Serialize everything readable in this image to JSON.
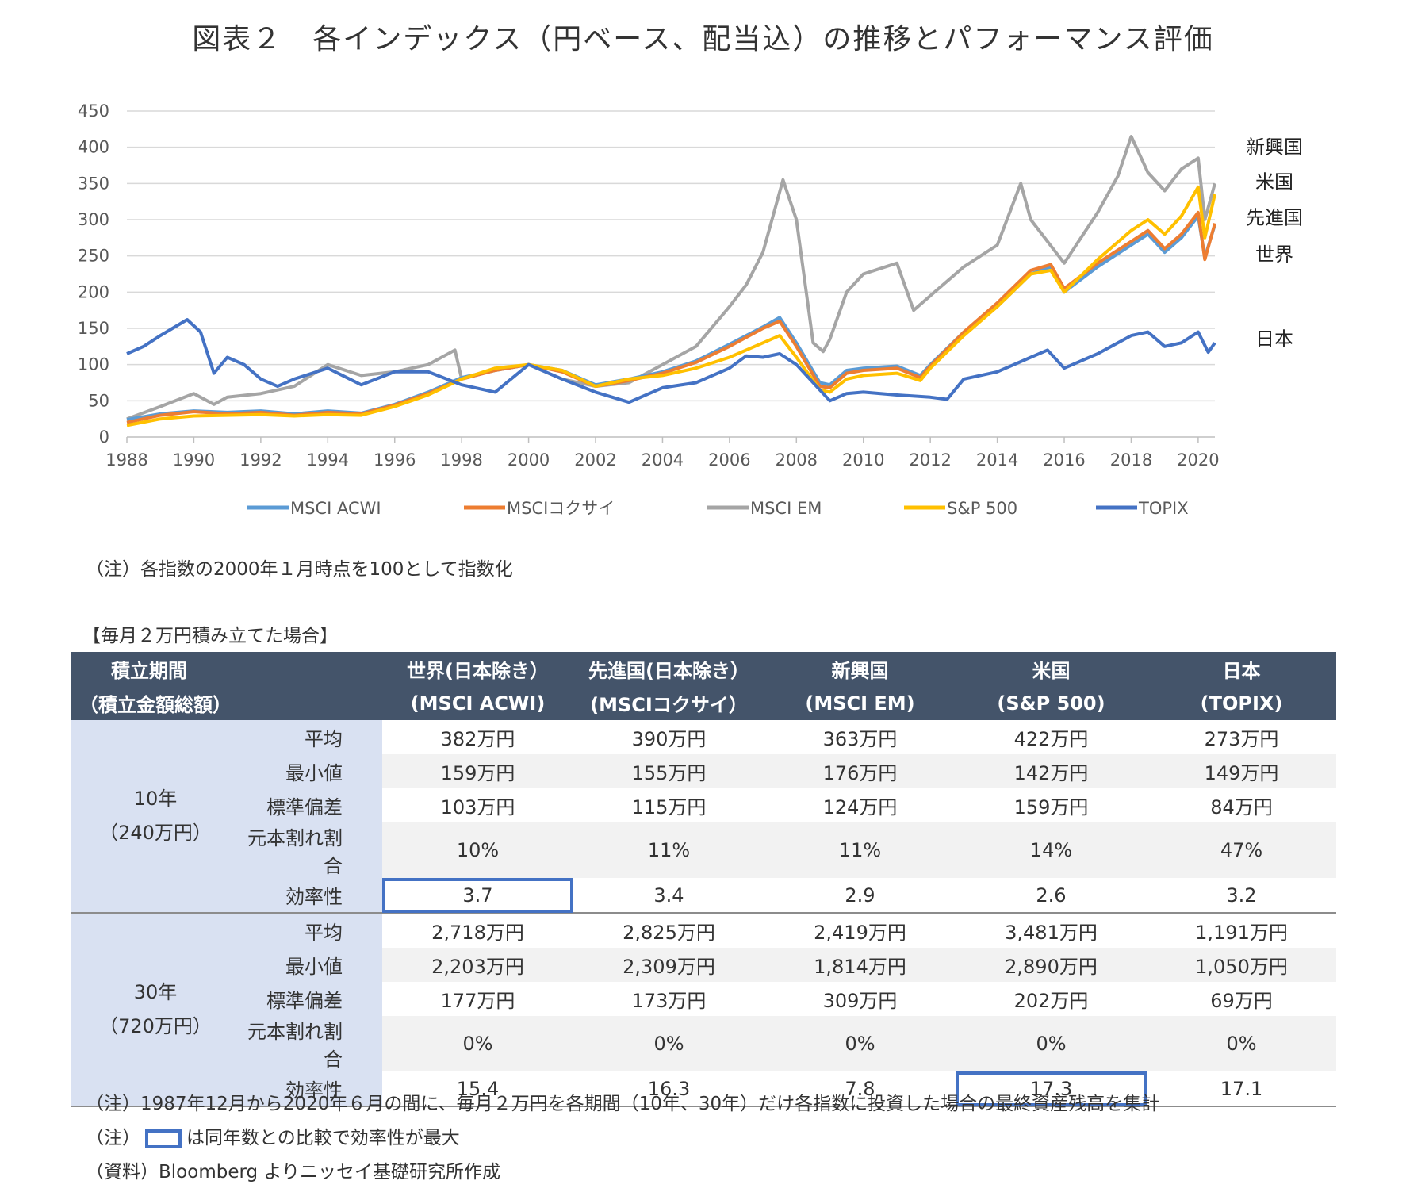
{
  "title": "図表２　各インデックス（円ベース、配当込）の推移とパフォーマンス評価",
  "chart_data": {
    "type": "line",
    "xlim": [
      1988,
      2020.5
    ],
    "ylim": [
      0,
      450
    ],
    "y_ticks": [
      "0",
      "50",
      "100",
      "150",
      "200",
      "250",
      "300",
      "350",
      "400",
      "450"
    ],
    "x_ticks": [
      "1988",
      "1990",
      "1992",
      "1994",
      "1996",
      "1998",
      "2000",
      "2002",
      "2004",
      "2006",
      "2008",
      "2010",
      "2012",
      "2014",
      "2016",
      "2018",
      "2020"
    ],
    "grid": true,
    "legend_position": "bottom",
    "region_labels": [
      {
        "text": "新興国",
        "y": 400
      },
      {
        "text": "米国",
        "y": 352
      },
      {
        "text": "先進国",
        "y": 303
      },
      {
        "text": "世界",
        "y": 252
      },
      {
        "text": "日本",
        "y": 135
      }
    ],
    "series": [
      {
        "name": "MSCI ACWI",
        "color": "#5b9bd5",
        "width": 4,
        "points": [
          [
            1988,
            24
          ],
          [
            1989,
            32
          ],
          [
            1990,
            36
          ],
          [
            1991,
            34
          ],
          [
            1992,
            36
          ],
          [
            1993,
            32
          ],
          [
            1994,
            36
          ],
          [
            1995,
            33
          ],
          [
            1996,
            45
          ],
          [
            1997,
            62
          ],
          [
            1998,
            82
          ],
          [
            1999,
            92
          ],
          [
            2000,
            100
          ],
          [
            2001,
            92
          ],
          [
            2002,
            72
          ],
          [
            2003,
            80
          ],
          [
            2004,
            90
          ],
          [
            2005,
            105
          ],
          [
            2006,
            128
          ],
          [
            2007,
            152
          ],
          [
            2007.5,
            165
          ],
          [
            2008,
            130
          ],
          [
            2008.7,
            75
          ],
          [
            2009,
            72
          ],
          [
            2009.5,
            92
          ],
          [
            2010,
            95
          ],
          [
            2011,
            98
          ],
          [
            2011.7,
            85
          ],
          [
            2012,
            100
          ],
          [
            2013,
            145
          ],
          [
            2014,
            180
          ],
          [
            2015,
            225
          ],
          [
            2015.6,
            235
          ],
          [
            2016,
            200
          ],
          [
            2017,
            235
          ],
          [
            2018,
            265
          ],
          [
            2018.5,
            280
          ],
          [
            2019,
            255
          ],
          [
            2019.5,
            275
          ],
          [
            2020,
            305
          ],
          [
            2020.2,
            248
          ],
          [
            2020.5,
            293
          ]
        ]
      },
      {
        "name": "MSCIコクサイ",
        "color": "#ed7d31",
        "width": 4,
        "points": [
          [
            1988,
            20
          ],
          [
            1989,
            30
          ],
          [
            1990,
            35
          ],
          [
            1991,
            32
          ],
          [
            1992,
            34
          ],
          [
            1993,
            30
          ],
          [
            1994,
            34
          ],
          [
            1995,
            32
          ],
          [
            1996,
            44
          ],
          [
            1997,
            60
          ],
          [
            1998,
            80
          ],
          [
            1999,
            92
          ],
          [
            2000,
            100
          ],
          [
            2001,
            90
          ],
          [
            2002,
            70
          ],
          [
            2003,
            78
          ],
          [
            2004,
            88
          ],
          [
            2005,
            103
          ],
          [
            2006,
            125
          ],
          [
            2007,
            150
          ],
          [
            2007.5,
            160
          ],
          [
            2008,
            125
          ],
          [
            2008.7,
            70
          ],
          [
            2009,
            68
          ],
          [
            2009.5,
            88
          ],
          [
            2010,
            92
          ],
          [
            2011,
            95
          ],
          [
            2011.7,
            82
          ],
          [
            2012,
            98
          ],
          [
            2013,
            145
          ],
          [
            2014,
            185
          ],
          [
            2015,
            230
          ],
          [
            2015.6,
            238
          ],
          [
            2016,
            205
          ],
          [
            2017,
            240
          ],
          [
            2018,
            270
          ],
          [
            2018.5,
            285
          ],
          [
            2019,
            260
          ],
          [
            2019.5,
            280
          ],
          [
            2020,
            310
          ],
          [
            2020.2,
            245
          ],
          [
            2020.5,
            295
          ]
        ]
      },
      {
        "name": "MSCI EM",
        "color": "#a5a5a5",
        "width": 4,
        "points": [
          [
            1988,
            25
          ],
          [
            1989,
            42
          ],
          [
            1990,
            60
          ],
          [
            1990.6,
            45
          ],
          [
            1991,
            55
          ],
          [
            1992,
            60
          ],
          [
            1993,
            70
          ],
          [
            1994,
            100
          ],
          [
            1995,
            85
          ],
          [
            1996,
            90
          ],
          [
            1997,
            100
          ],
          [
            1997.8,
            120
          ],
          [
            1998,
            80
          ],
          [
            1999,
            92
          ],
          [
            2000,
            100
          ],
          [
            2001,
            80
          ],
          [
            2002,
            70
          ],
          [
            2003,
            75
          ],
          [
            2004,
            100
          ],
          [
            2005,
            125
          ],
          [
            2006,
            180
          ],
          [
            2006.5,
            210
          ],
          [
            2007,
            255
          ],
          [
            2007.6,
            355
          ],
          [
            2008,
            300
          ],
          [
            2008.5,
            130
          ],
          [
            2008.8,
            118
          ],
          [
            2009,
            135
          ],
          [
            2009.5,
            200
          ],
          [
            2010,
            225
          ],
          [
            2011,
            240
          ],
          [
            2011.5,
            175
          ],
          [
            2012,
            195
          ],
          [
            2013,
            235
          ],
          [
            2014,
            265
          ],
          [
            2014.7,
            350
          ],
          [
            2015,
            300
          ],
          [
            2016,
            240
          ],
          [
            2017,
            310
          ],
          [
            2017.6,
            360
          ],
          [
            2018,
            415
          ],
          [
            2018.5,
            365
          ],
          [
            2019,
            340
          ],
          [
            2019.5,
            370
          ],
          [
            2020,
            385
          ],
          [
            2020.2,
            300
          ],
          [
            2020.5,
            350
          ]
        ]
      },
      {
        "name": "S&P 500",
        "color": "#ffc000",
        "width": 4,
        "points": [
          [
            1988,
            16
          ],
          [
            1989,
            25
          ],
          [
            1990,
            29
          ],
          [
            1991,
            30
          ],
          [
            1992,
            31
          ],
          [
            1993,
            29
          ],
          [
            1994,
            31
          ],
          [
            1995,
            30
          ],
          [
            1996,
            42
          ],
          [
            1997,
            58
          ],
          [
            1998,
            80
          ],
          [
            1999,
            95
          ],
          [
            2000,
            100
          ],
          [
            2001,
            92
          ],
          [
            2002,
            70
          ],
          [
            2003,
            80
          ],
          [
            2004,
            85
          ],
          [
            2005,
            95
          ],
          [
            2006,
            110
          ],
          [
            2007,
            130
          ],
          [
            2007.5,
            140
          ],
          [
            2008,
            110
          ],
          [
            2008.7,
            65
          ],
          [
            2009,
            62
          ],
          [
            2009.5,
            80
          ],
          [
            2010,
            85
          ],
          [
            2011,
            88
          ],
          [
            2011.7,
            78
          ],
          [
            2012,
            95
          ],
          [
            2013,
            140
          ],
          [
            2014,
            180
          ],
          [
            2015,
            225
          ],
          [
            2015.6,
            230
          ],
          [
            2016,
            200
          ],
          [
            2017,
            245
          ],
          [
            2018,
            285
          ],
          [
            2018.5,
            300
          ],
          [
            2019,
            280
          ],
          [
            2019.5,
            305
          ],
          [
            2020,
            345
          ],
          [
            2020.2,
            275
          ],
          [
            2020.5,
            335
          ]
        ]
      },
      {
        "name": "TOPIX",
        "color": "#4472c4",
        "width": 4,
        "points": [
          [
            1988,
            115
          ],
          [
            1988.5,
            125
          ],
          [
            1989,
            140
          ],
          [
            1989.8,
            162
          ],
          [
            1990.2,
            145
          ],
          [
            1990.6,
            88
          ],
          [
            1991,
            110
          ],
          [
            1991.5,
            100
          ],
          [
            1992,
            80
          ],
          [
            1992.5,
            70
          ],
          [
            1993,
            80
          ],
          [
            1994,
            95
          ],
          [
            1995,
            72
          ],
          [
            1996,
            90
          ],
          [
            1997,
            90
          ],
          [
            1998,
            72
          ],
          [
            1999,
            62
          ],
          [
            2000,
            100
          ],
          [
            2000.5,
            90
          ],
          [
            2001,
            80
          ],
          [
            2002,
            62
          ],
          [
            2003,
            48
          ],
          [
            2004,
            68
          ],
          [
            2005,
            75
          ],
          [
            2006,
            95
          ],
          [
            2006.5,
            112
          ],
          [
            2007,
            110
          ],
          [
            2007.5,
            115
          ],
          [
            2008,
            100
          ],
          [
            2008.5,
            75
          ],
          [
            2009,
            50
          ],
          [
            2009.5,
            60
          ],
          [
            2010,
            62
          ],
          [
            2011,
            58
          ],
          [
            2012,
            55
          ],
          [
            2012.5,
            52
          ],
          [
            2013,
            80
          ],
          [
            2014,
            90
          ],
          [
            2015,
            110
          ],
          [
            2015.5,
            120
          ],
          [
            2016,
            95
          ],
          [
            2017,
            115
          ],
          [
            2018,
            140
          ],
          [
            2018.5,
            145
          ],
          [
            2019,
            125
          ],
          [
            2019.5,
            130
          ],
          [
            2020,
            145
          ],
          [
            2020.3,
            117
          ],
          [
            2020.5,
            130
          ]
        ]
      }
    ]
  },
  "notes": {
    "chart_note": "（注）各指数の2000年１月時点を100として指数化",
    "table_title": "【毎月２万円積み立てた場合】",
    "foot1": "（注）1987年12月から2020年６月の間に、毎月２万円を各期間（10年、30年）だけ各指数に投資した場合の最終資産残高を集計",
    "foot2_pre": "（注）",
    "foot2_post": "は同年数との比較で効率性が最大",
    "foot3": "（資料）Bloomberg よりニッセイ基礎研究所作成"
  },
  "table": {
    "header": {
      "c0_line1": "積立期間",
      "c0_line2": "（積立金額総額）",
      "c1_line1": "世界(日本除き）",
      "c1_line2": "(MSCI ACWI)",
      "c2_line1": "先進国(日本除き）",
      "c2_line2": "(MSCIコクサイ）",
      "c3_line1": "新興国",
      "c3_line2": "(MSCI EM)",
      "c4_line1": "米国",
      "c4_line2": "(S&P 500)",
      "c5_line1": "日本",
      "c5_line2": "(TOPIX)"
    },
    "p10": {
      "line1": "10年",
      "line2": "（240万円）"
    },
    "p30": {
      "line1": "30年",
      "line2": "（720万円）"
    },
    "metrics": [
      "平均",
      "最小値",
      "標準偏差",
      "元本割れ割合",
      "効率性"
    ],
    "rows10": [
      [
        "382万円",
        "390万円",
        "363万円",
        "422万円",
        "273万円"
      ],
      [
        "159万円",
        "155万円",
        "176万円",
        "142万円",
        "149万円"
      ],
      [
        "103万円",
        "115万円",
        "124万円",
        "159万円",
        "84万円"
      ],
      [
        "10%",
        "11%",
        "11%",
        "14%",
        "47%"
      ],
      [
        "3.7",
        "3.4",
        "2.9",
        "2.6",
        "3.2"
      ]
    ],
    "rows30": [
      [
        "2,718万円",
        "2,825万円",
        "2,419万円",
        "3,481万円",
        "1,191万円"
      ],
      [
        "2,203万円",
        "2,309万円",
        "1,814万円",
        "2,890万円",
        "1,050万円"
      ],
      [
        "177万円",
        "173万円",
        "309万円",
        "202万円",
        "69万円"
      ],
      [
        "0%",
        "0%",
        "0%",
        "0%",
        "0%"
      ],
      [
        "15.4",
        "16.3",
        "7.8",
        "17.3",
        "17.1"
      ]
    ]
  }
}
